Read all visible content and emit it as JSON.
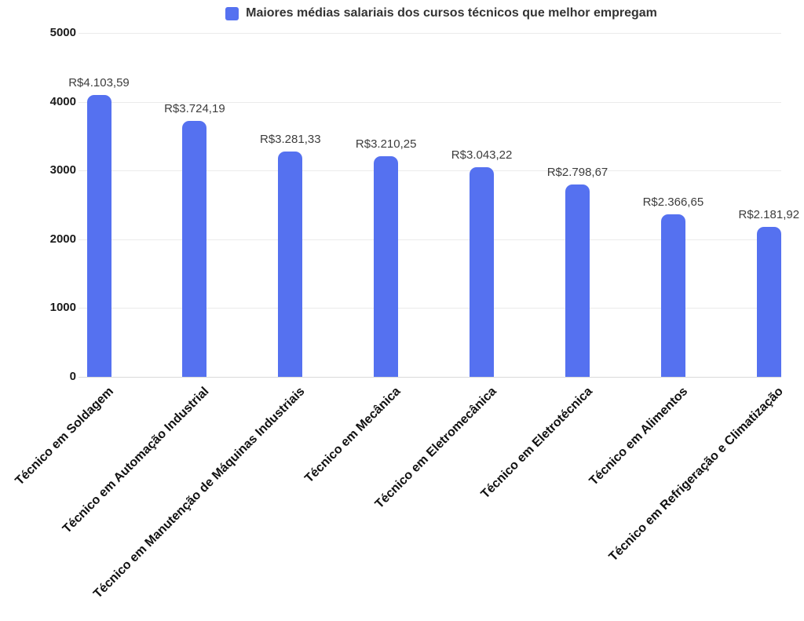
{
  "legend": {
    "label": "Maiores médias salariais dos cursos técnicos que melhor empregam"
  },
  "colors": {
    "bar": "#5571f0",
    "grid": "#ebebeb",
    "axis_line": "#d9d9d9",
    "y_tick_text": "#1a1a1a",
    "x_tick_text": "#111111",
    "value_label_text": "#3d3d3d",
    "legend_text": "#333333",
    "background": "#ffffff"
  },
  "chart_data": {
    "type": "bar",
    "title": "Maiores médias salariais dos cursos técnicos que melhor empregam",
    "categories": [
      "Técnico em Soldagem",
      "Técnico em Automação Industrial",
      "Técnico em Manutenção de Máquinas Industriais",
      "Técnico em Mecânica",
      "Técnico em Eletromecânica",
      "Técnico em Eletrotécnica",
      "Técnico em Alimentos",
      "Técnico em Refrigeração e Climatização"
    ],
    "values": [
      4103.59,
      3724.19,
      3281.33,
      3210.25,
      3043.22,
      2798.67,
      2366.65,
      2181.92
    ],
    "value_labels": [
      "R$4.103,59",
      "R$3.724,19",
      "R$3.281,33",
      "R$3.210,25",
      "R$3.043,22",
      "R$2.798,67",
      "R$2.366,65",
      "R$2.181,92"
    ],
    "xlabel": "",
    "ylabel": "",
    "ylim": [
      0,
      5000
    ],
    "yticks": [
      0,
      1000,
      2000,
      3000,
      4000,
      5000
    ],
    "grid": true,
    "legend_position": "top",
    "bar_color": "#5571f0"
  }
}
